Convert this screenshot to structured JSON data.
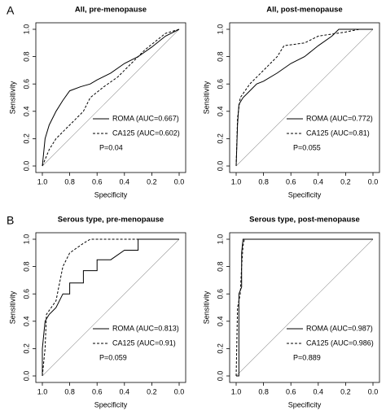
{
  "panel_labels": [
    "A",
    "B"
  ],
  "chart_data": [
    {
      "type": "line",
      "title": "All, pre-menopause",
      "x_label": "Specificity",
      "y_label": "Sensitivity",
      "xlim": [
        1,
        0
      ],
      "ylim": [
        0,
        1
      ],
      "xticks": [
        {
          "value": 1,
          "label": "1.0"
        },
        {
          "value": 0.8,
          "label": "0.8"
        },
        {
          "value": 0.6,
          "label": "0.6"
        },
        {
          "value": 0.4,
          "label": "0.4"
        },
        {
          "value": 0.2,
          "label": "0.2"
        },
        {
          "value": 0,
          "label": "0.0"
        }
      ],
      "yticks": [
        {
          "value": 0,
          "label": "0.0"
        },
        {
          "value": 0.2,
          "label": "0.2"
        },
        {
          "value": 0.4,
          "label": "0.4"
        },
        {
          "value": 0.6,
          "label": "0.6"
        },
        {
          "value": 0.8,
          "label": "0.8"
        },
        {
          "value": 1,
          "label": "1.0"
        }
      ],
      "annotation": "P=0.04",
      "series": [
        {
          "name": "ROMA (AUC=0.667)",
          "color": "#000000",
          "line_style": "solid",
          "x": [
            1,
            0.98,
            0.95,
            0.9,
            0.85,
            0.8,
            0.72,
            0.65,
            0.6,
            0.5,
            0.4,
            0.3,
            0.2,
            0.1,
            0
          ],
          "values": [
            0,
            0.2,
            0.3,
            0.4,
            0.48,
            0.55,
            0.58,
            0.6,
            0.63,
            0.68,
            0.75,
            0.8,
            0.87,
            0.95,
            1
          ]
        },
        {
          "name": "CA125 (AUC=0.602)",
          "color": "#000000",
          "line_style": "dashed",
          "x": [
            1,
            0.95,
            0.9,
            0.8,
            0.7,
            0.65,
            0.55,
            0.45,
            0.35,
            0.25,
            0.1,
            0
          ],
          "values": [
            0,
            0.12,
            0.2,
            0.3,
            0.4,
            0.5,
            0.58,
            0.65,
            0.75,
            0.85,
            0.97,
            1
          ]
        }
      ]
    },
    {
      "type": "line",
      "title": "All, post-menopause",
      "x_label": "Specificity",
      "y_label": "Sensitivity",
      "xlim": [
        1,
        0
      ],
      "ylim": [
        0,
        1
      ],
      "xticks": [
        {
          "value": 1,
          "label": "1.0"
        },
        {
          "value": 0.8,
          "label": "0.8"
        },
        {
          "value": 0.6,
          "label": "0.6"
        },
        {
          "value": 0.4,
          "label": "0.4"
        },
        {
          "value": 0.2,
          "label": "0.2"
        },
        {
          "value": 0,
          "label": "0.0"
        }
      ],
      "yticks": [
        {
          "value": 0,
          "label": "0.0"
        },
        {
          "value": 0.2,
          "label": "0.2"
        },
        {
          "value": 0.4,
          "label": "0.4"
        },
        {
          "value": 0.6,
          "label": "0.6"
        },
        {
          "value": 0.8,
          "label": "0.8"
        },
        {
          "value": 1,
          "label": "1.0"
        }
      ],
      "annotation": "P=0.055",
      "series": [
        {
          "name": "ROMA (AUC=0.772)",
          "color": "#000000",
          "line_style": "solid",
          "x": [
            1,
            0.99,
            0.98,
            0.95,
            0.9,
            0.85,
            0.8,
            0.7,
            0.6,
            0.5,
            0.4,
            0.3,
            0.25,
            0
          ],
          "values": [
            0,
            0.3,
            0.45,
            0.5,
            0.55,
            0.6,
            0.62,
            0.68,
            0.75,
            0.8,
            0.88,
            0.95,
            1,
            1
          ]
        },
        {
          "name": "CA125 (AUC=0.81)",
          "color": "#000000",
          "line_style": "dashed",
          "x": [
            1,
            0.99,
            0.97,
            0.9,
            0.8,
            0.7,
            0.65,
            0.5,
            0.4,
            0.2,
            0.1,
            0
          ],
          "values": [
            0,
            0.35,
            0.5,
            0.6,
            0.7,
            0.8,
            0.88,
            0.9,
            0.95,
            0.98,
            1,
            1
          ]
        }
      ]
    },
    {
      "type": "line",
      "title": "Serous type, pre-menopause",
      "x_label": "Specificity",
      "y_label": "Sensitivity",
      "xlim": [
        1,
        0
      ],
      "ylim": [
        0,
        1
      ],
      "xticks": [
        {
          "value": 1,
          "label": "1.0"
        },
        {
          "value": 0.8,
          "label": "0.8"
        },
        {
          "value": 0.6,
          "label": "0.6"
        },
        {
          "value": 0.4,
          "label": "0.4"
        },
        {
          "value": 0.2,
          "label": "0.2"
        },
        {
          "value": 0,
          "label": "0.0"
        }
      ],
      "yticks": [
        {
          "value": 0,
          "label": "0.0"
        },
        {
          "value": 0.2,
          "label": "0.2"
        },
        {
          "value": 0.4,
          "label": "0.4"
        },
        {
          "value": 0.6,
          "label": "0.6"
        },
        {
          "value": 0.8,
          "label": "0.8"
        },
        {
          "value": 1,
          "label": "1.0"
        }
      ],
      "annotation": "P=0.059",
      "series": [
        {
          "name": "ROMA (AUC=0.813)",
          "color": "#000000",
          "line_style": "solid",
          "x": [
            1,
            1,
            0.98,
            0.95,
            0.9,
            0.85,
            0.8,
            0.8,
            0.7,
            0.7,
            0.6,
            0.6,
            0.5,
            0.4,
            0.3,
            0.3,
            0
          ],
          "values": [
            0,
            0.2,
            0.4,
            0.45,
            0.5,
            0.6,
            0.6,
            0.68,
            0.68,
            0.77,
            0.77,
            0.85,
            0.85,
            0.92,
            0.92,
            1,
            1
          ]
        },
        {
          "name": "CA125 (AUC=0.91)",
          "color": "#000000",
          "line_style": "dashed",
          "x": [
            1,
            0.98,
            0.97,
            0.9,
            0.88,
            0.85,
            0.8,
            0.7,
            0.65,
            0
          ],
          "values": [
            0,
            0.2,
            0.45,
            0.55,
            0.65,
            0.8,
            0.9,
            0.97,
            1,
            1
          ]
        }
      ]
    },
    {
      "type": "line",
      "title": "Serous type, post-menopause",
      "x_label": "Specificity",
      "y_label": "Sensitivity",
      "xlim": [
        1,
        0
      ],
      "ylim": [
        0,
        1
      ],
      "xticks": [
        {
          "value": 1,
          "label": "1.0"
        },
        {
          "value": 0.8,
          "label": "0.8"
        },
        {
          "value": 0.6,
          "label": "0.6"
        },
        {
          "value": 0.4,
          "label": "0.4"
        },
        {
          "value": 0.2,
          "label": "0.2"
        },
        {
          "value": 0,
          "label": "0.0"
        }
      ],
      "yticks": [
        {
          "value": 0,
          "label": "0.0"
        },
        {
          "value": 0.2,
          "label": "0.2"
        },
        {
          "value": 0.4,
          "label": "0.4"
        },
        {
          "value": 0.6,
          "label": "0.6"
        },
        {
          "value": 0.8,
          "label": "0.8"
        },
        {
          "value": 1,
          "label": "1.0"
        }
      ],
      "annotation": "P=0.889",
      "series": [
        {
          "name": "ROMA (AUC=0.987)",
          "color": "#000000",
          "line_style": "solid",
          "x": [
            1,
            0.98,
            0.98,
            0.96,
            0.96,
            0.95,
            0
          ],
          "values": [
            0,
            0,
            0.6,
            0.65,
            0.9,
            1,
            1
          ]
        },
        {
          "name": "CA125 (AUC=0.986)",
          "color": "#000000",
          "line_style": "dashed",
          "x": [
            1,
            0.99,
            0.97,
            0.96,
            0.95,
            0.94,
            0
          ],
          "values": [
            0,
            0.5,
            0.6,
            0.8,
            0.95,
            1,
            1
          ]
        }
      ]
    }
  ]
}
